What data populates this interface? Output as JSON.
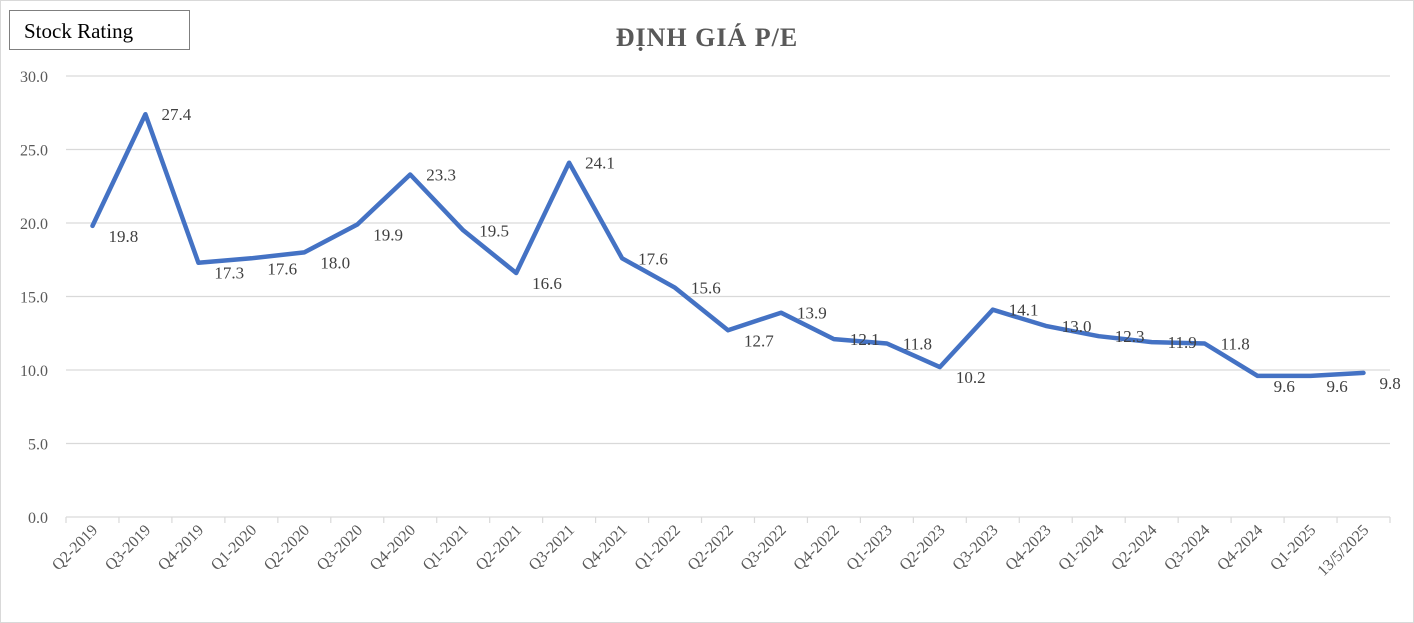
{
  "badge": {
    "label": "Stock Rating"
  },
  "chart_data": {
    "type": "line",
    "title": "ĐỊNH GIÁ P/E",
    "xlabel": "",
    "ylabel": "",
    "ylim": [
      0,
      30
    ],
    "yticks": [
      "0.0",
      "5.0",
      "10.0",
      "15.0",
      "20.0",
      "25.0",
      "30.0"
    ],
    "grid": true,
    "legend": "none",
    "categories": [
      "Q2-2019",
      "Q3-2019",
      "Q4-2019",
      "Q1-2020",
      "Q2-2020",
      "Q3-2020",
      "Q4-2020",
      "Q1-2021",
      "Q2-2021",
      "Q3-2021",
      "Q4-2021",
      "Q1-2022",
      "Q2-2022",
      "Q3-2022",
      "Q4-2022",
      "Q1-2023",
      "Q2-2023",
      "Q3-2023",
      "Q4-2023",
      "Q1-2024",
      "Q2-2024",
      "Q3-2024",
      "Q4-2024",
      "Q1-2025",
      "13/5/2025"
    ],
    "values": [
      19.8,
      27.4,
      17.3,
      17.6,
      18.0,
      19.9,
      23.3,
      19.5,
      16.6,
      24.1,
      17.6,
      15.6,
      12.7,
      13.9,
      12.1,
      11.8,
      10.2,
      14.1,
      13.0,
      12.3,
      11.9,
      11.8,
      9.6,
      9.6,
      9.8
    ],
    "value_labels": [
      "19.8",
      "27.4",
      "17.3",
      "17.6",
      "18.0",
      "19.9",
      "23.3",
      "19.5",
      "16.6",
      "24.1",
      "17.6",
      "15.6",
      "12.7",
      "13.9",
      "12.1",
      "11.8",
      "10.2",
      "14.1",
      "13.0",
      "12.3",
      "11.9",
      "11.8",
      "9.6",
      "9.6",
      "9.8"
    ],
    "series_color": "#4472c4"
  }
}
